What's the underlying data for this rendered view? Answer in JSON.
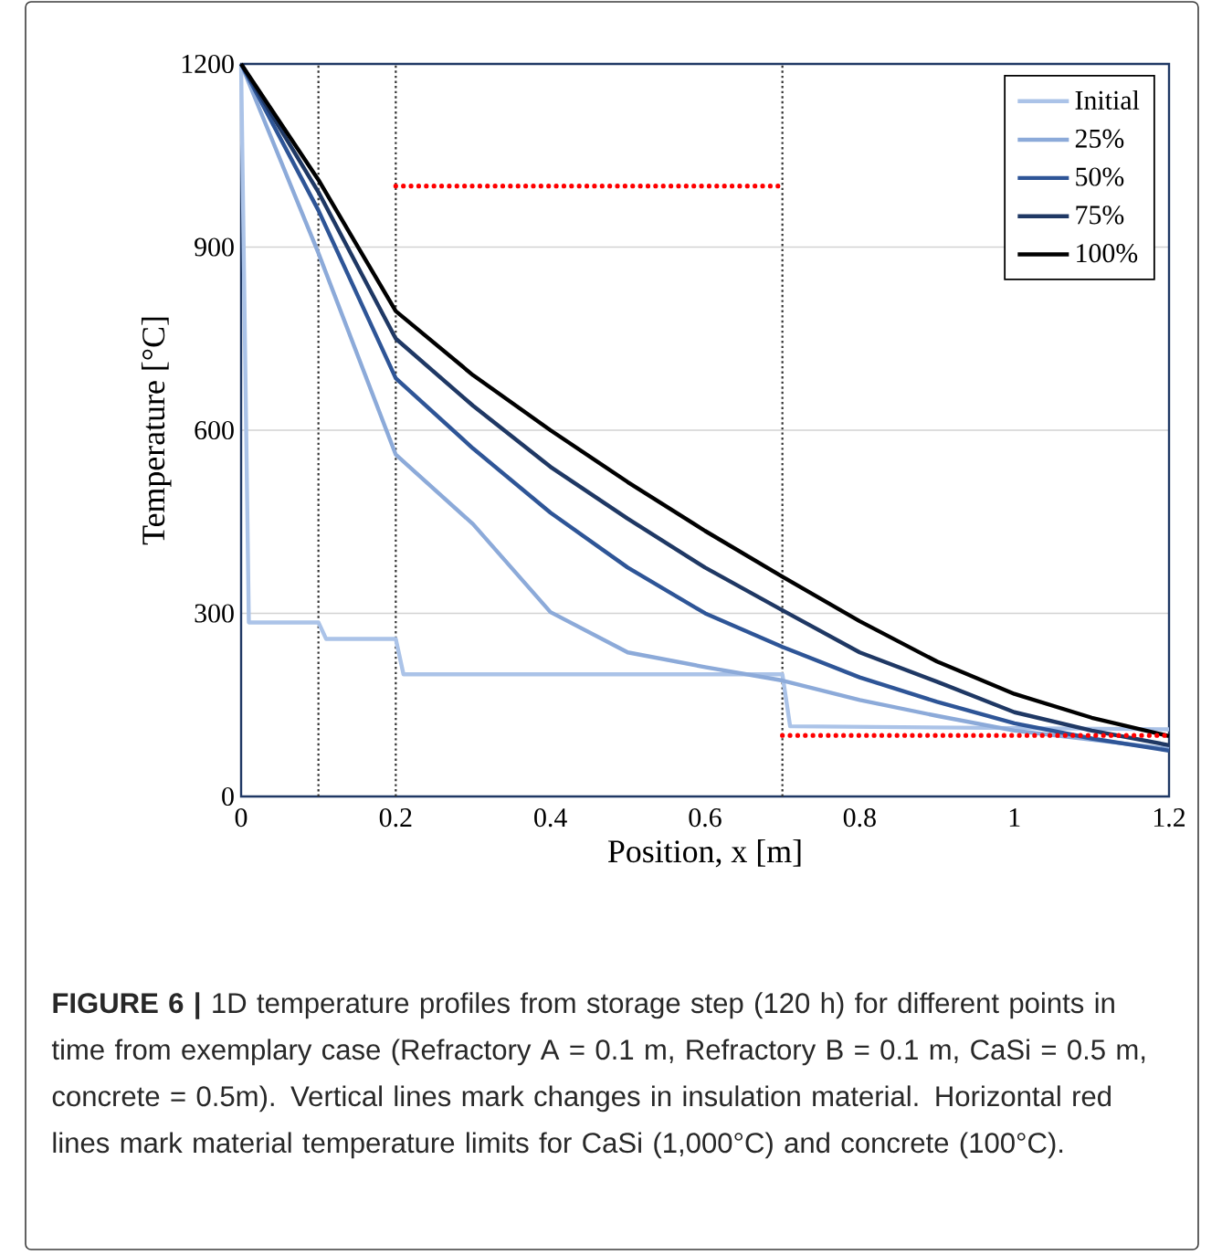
{
  "chart_data": {
    "type": "line",
    "xlabel": "Position, x [m]",
    "ylabel": "Temperature [°C]",
    "xlim": [
      0,
      1.2
    ],
    "ylim": [
      0,
      1200
    ],
    "xticks": [
      0,
      0.2,
      0.4,
      0.6,
      0.8,
      1,
      1.2
    ],
    "yticks": [
      0,
      300,
      600,
      900,
      1200
    ],
    "grid": "y",
    "legend": "top right",
    "marker": "none",
    "line_style": "solid",
    "series": [
      {
        "name": "Initial",
        "color": "#abc3e8",
        "x": [
          0,
          0.01,
          0.1,
          0.11,
          0.2,
          0.21,
          0.7,
          0.71,
          1.2
        ],
        "values": [
          1200,
          285,
          285,
          258,
          258,
          200,
          200,
          115,
          110
        ]
      },
      {
        "name": "25%",
        "color": "#8caad9",
        "x": [
          0,
          0.1,
          0.2,
          0.3,
          0.4,
          0.5,
          0.6,
          0.7,
          0.8,
          0.9,
          1.0,
          1.1,
          1.2
        ],
        "values": [
          1200,
          890,
          560,
          446,
          302,
          236,
          212,
          190,
          158,
          132,
          108,
          93,
          78
        ]
      },
      {
        "name": "50%",
        "color": "#2e5597",
        "x": [
          0,
          0.1,
          0.2,
          0.3,
          0.4,
          0.5,
          0.6,
          0.7,
          0.8,
          0.9,
          1.0,
          1.1,
          1.2
        ],
        "values": [
          1200,
          960,
          685,
          570,
          465,
          375,
          300,
          245,
          195,
          155,
          120,
          95,
          75
        ]
      },
      {
        "name": "75%",
        "color": "#1f3864",
        "x": [
          0,
          0.1,
          0.2,
          0.3,
          0.4,
          0.5,
          0.6,
          0.7,
          0.8,
          0.9,
          1.0,
          1.1,
          1.2
        ],
        "values": [
          1200,
          990,
          750,
          640,
          540,
          455,
          375,
          305,
          236,
          188,
          138,
          108,
          84
        ]
      },
      {
        "name": "100%",
        "color": "#000000",
        "x": [
          0,
          0.1,
          0.2,
          0.3,
          0.4,
          0.5,
          0.6,
          0.7,
          0.8,
          0.9,
          1.0,
          1.1,
          1.2
        ],
        "values": [
          1200,
          1010,
          795,
          690,
          600,
          515,
          435,
          360,
          287,
          221,
          168,
          129,
          99
        ]
      },
      {
        "color": "#ff0000",
        "line_style": "dotted",
        "x": [
          0.2,
          0.7
        ],
        "values": [
          1000,
          1000
        ]
      },
      {
        "color": "#ff0000",
        "line_style": "dotted",
        "x": [
          0.7,
          1.2
        ],
        "values": [
          100,
          100
        ]
      }
    ],
    "ref_lines": [
      {
        "axis": "x",
        "value": 0.1,
        "color": "#333333",
        "line_style": "dotted"
      },
      {
        "axis": "x",
        "value": 0.2,
        "color": "#333333",
        "line_style": "dotted"
      },
      {
        "axis": "x",
        "value": 0.7,
        "color": "#333333",
        "line_style": "dotted"
      }
    ],
    "annotations": [
      "**FIGURE 6 |** 1D temperature profiles from storage step (120 h) for different points in time from exemplary case (Refractory A = 0.1 m, Refractory B = 0.1 m, CaSi = 0.5 m, concrete = 0.5m). Vertical lines mark changes in insulation material. Horizontal red lines mark material temperature limits for CaSi (1,000°C) and concrete (100°C)."
    ]
  }
}
